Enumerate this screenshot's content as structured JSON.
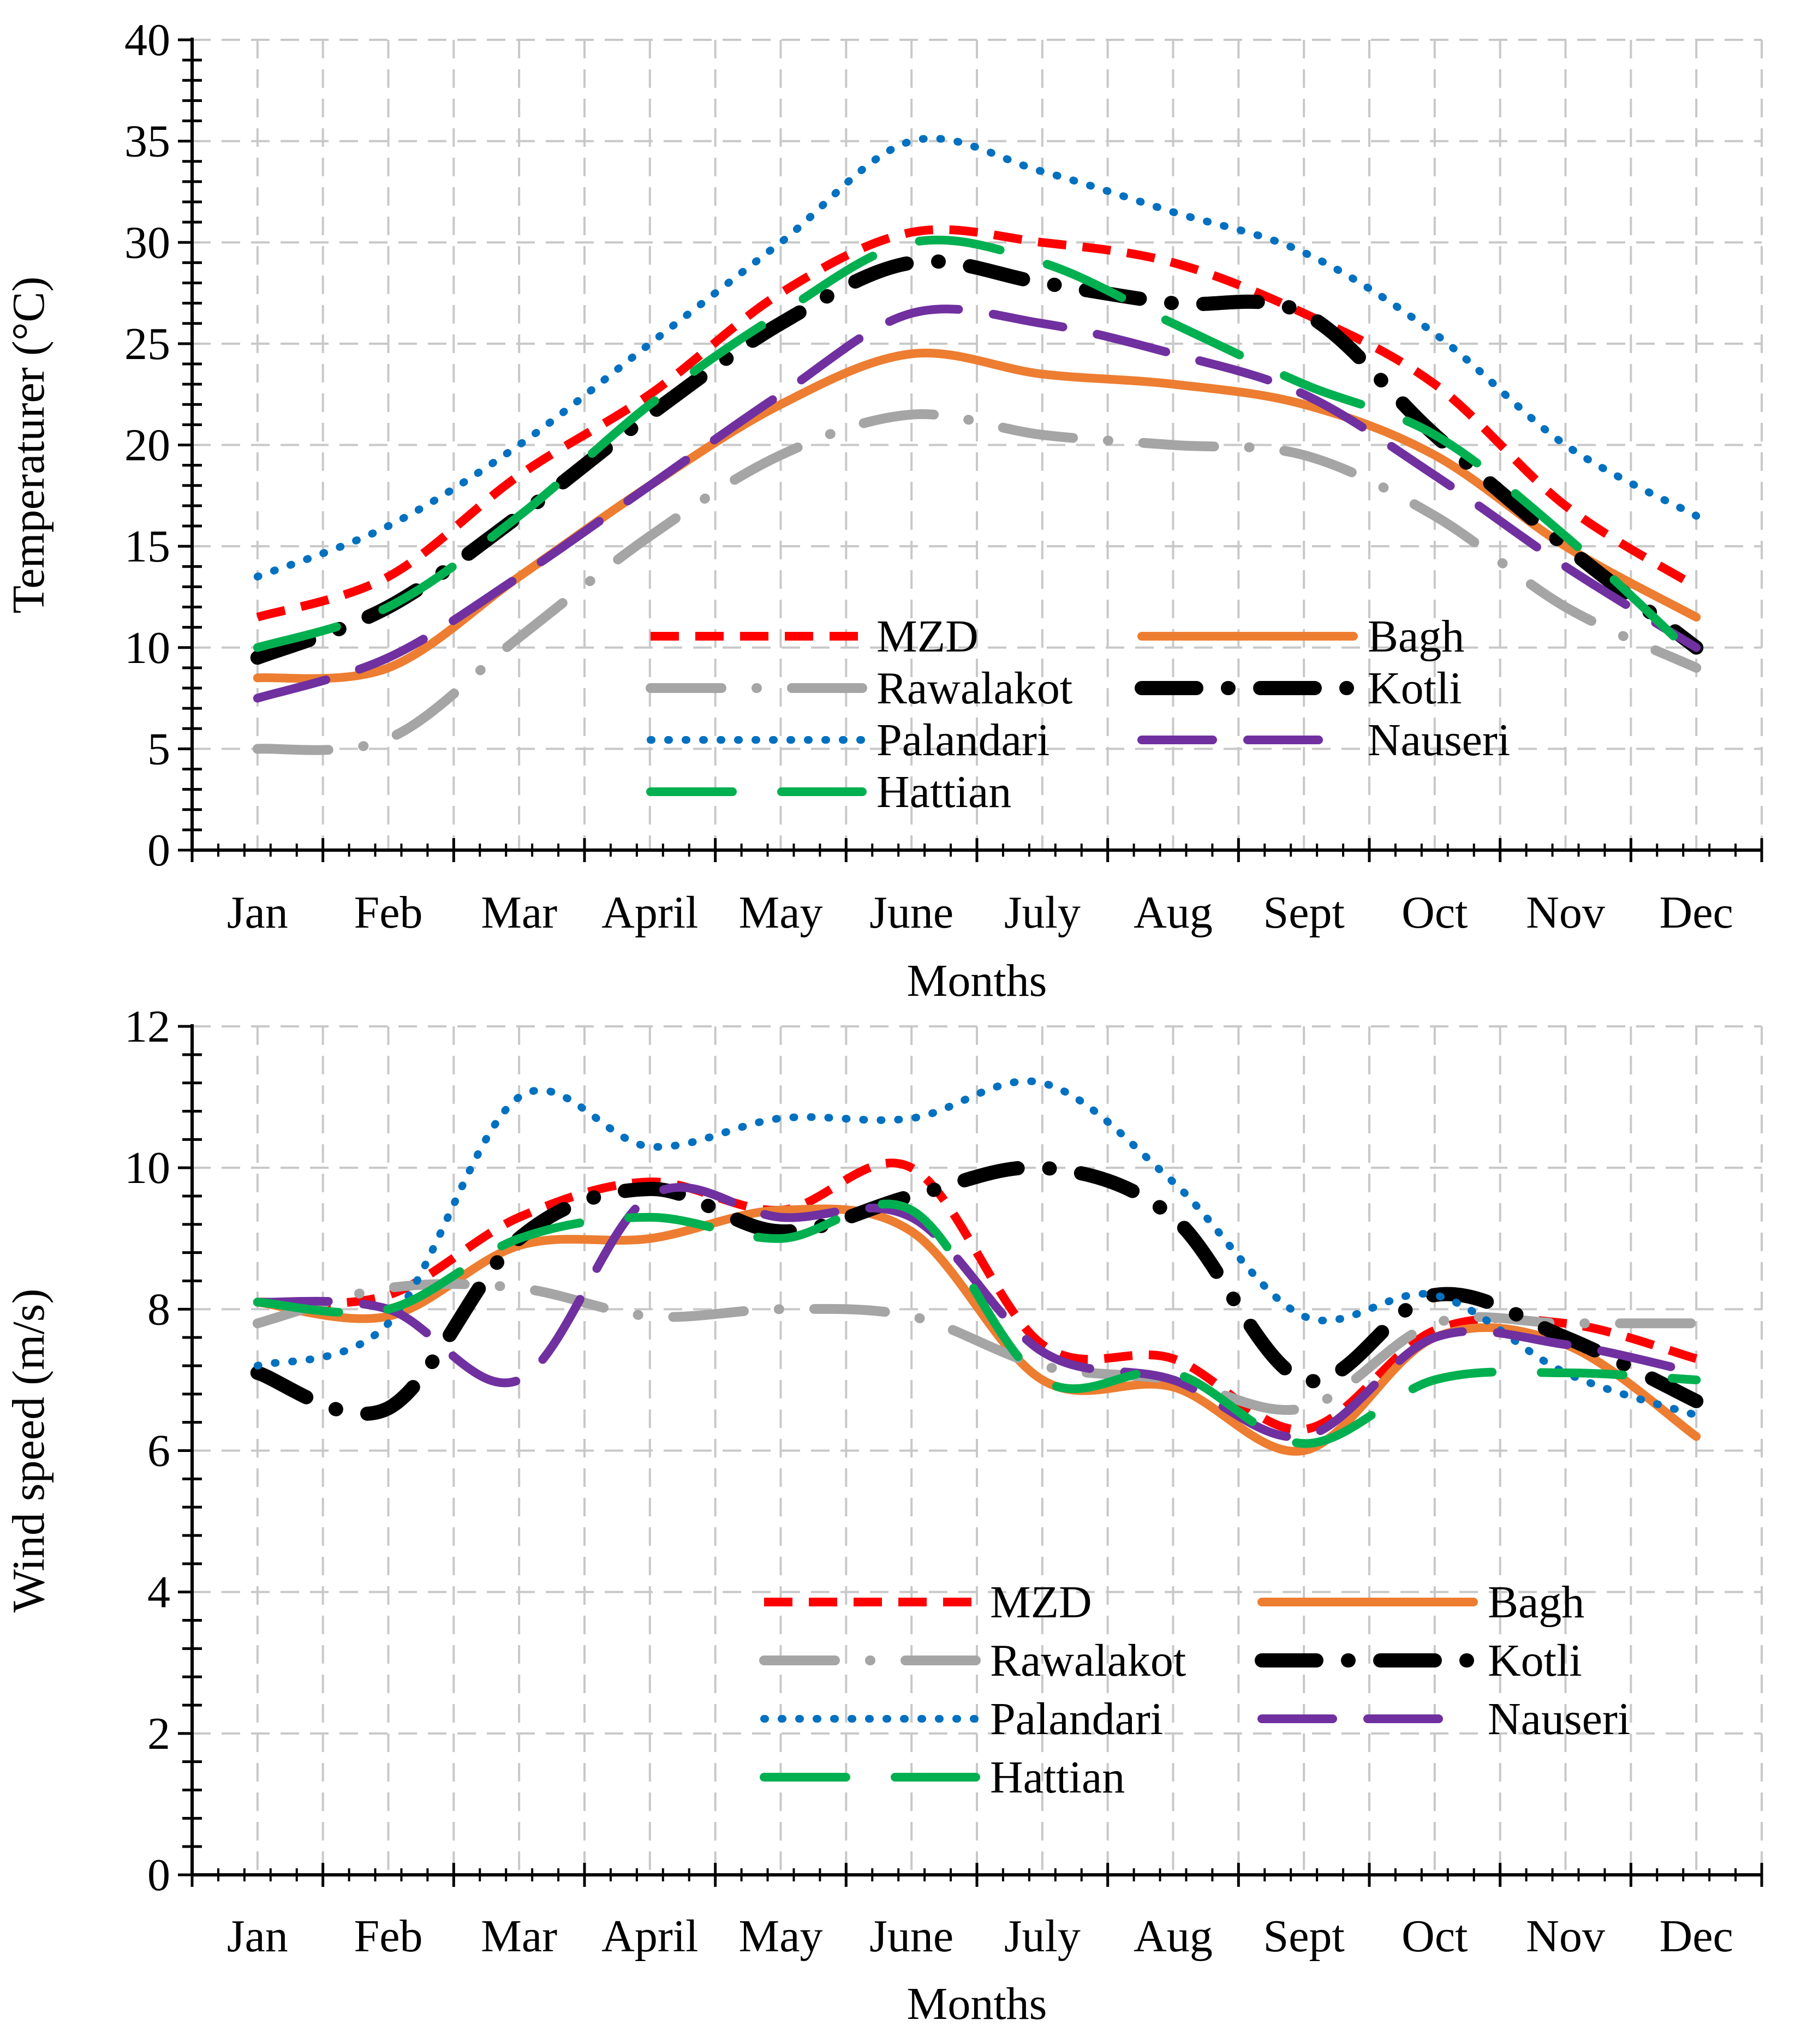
{
  "chart_data": [
    {
      "type": "line",
      "title": "",
      "xlabel": "Months",
      "ylabel": "Temperaturer (°C)",
      "categories": [
        "Jan",
        "Feb",
        "Mar",
        "April",
        "May",
        "June",
        "July",
        "Aug",
        "Sept",
        "Oct",
        "Nov",
        "Dec"
      ],
      "ylim": [
        0,
        40
      ],
      "ytick_step": 5,
      "ytick_labels": [
        "0",
        "5",
        "10",
        "15",
        "20",
        "25",
        "30",
        "35",
        "40"
      ],
      "grid": true,
      "legend_position": "lower-center",
      "series": [
        {
          "name": "MZD",
          "color": "#ff0000",
          "style": "dash",
          "values": [
            11.5,
            13.5,
            18.5,
            22.5,
            27.5,
            30.5,
            30.0,
            29.0,
            26.5,
            23.0,
            17.0,
            13.0
          ]
        },
        {
          "name": "Bagh",
          "color": "#ed7d31",
          "style": "solid",
          "values": [
            8.5,
            9.0,
            13.5,
            18.0,
            22.0,
            24.5,
            23.5,
            23.0,
            22.0,
            19.5,
            15.0,
            11.5
          ]
        },
        {
          "name": "Rawalakot",
          "color": "#a5a5a5",
          "style": "dashdot-long",
          "values": [
            5.0,
            5.5,
            10.5,
            15.5,
            19.5,
            21.5,
            20.5,
            20.0,
            19.5,
            16.5,
            12.0,
            9.0
          ]
        },
        {
          "name": "Kotli",
          "color": "#000000",
          "style": "dashdot",
          "values": [
            9.5,
            12.0,
            16.5,
            21.5,
            26.0,
            29.0,
            28.0,
            27.0,
            26.5,
            20.5,
            15.0,
            10.0
          ]
        },
        {
          "name": "Palandari",
          "color": "#0070c0",
          "style": "dot",
          "values": [
            13.5,
            16.0,
            20.0,
            25.0,
            30.0,
            35.0,
            33.5,
            31.5,
            29.5,
            25.5,
            20.0,
            16.5
          ]
        },
        {
          "name": "Nauseri",
          "color": "#7030a0",
          "style": "longdash",
          "values": [
            7.5,
            9.5,
            13.5,
            18.0,
            22.5,
            26.5,
            26.0,
            24.5,
            22.5,
            18.5,
            14.0,
            10.0
          ]
        },
        {
          "name": "Hattian",
          "color": "#00b050",
          "style": "longdash-wide",
          "values": [
            10.0,
            12.0,
            16.5,
            22.0,
            26.5,
            30.0,
            29.0,
            26.0,
            23.0,
            20.5,
            15.5,
            9.5
          ]
        }
      ]
    },
    {
      "type": "line",
      "title": "",
      "xlabel": "Months",
      "ylabel": "Wind speed (m/s)",
      "categories": [
        "Jan",
        "Feb",
        "Mar",
        "April",
        "May",
        "June",
        "July",
        "Aug",
        "Sept",
        "Oct",
        "Nov",
        "Dec"
      ],
      "ylim": [
        0,
        12
      ],
      "ytick_step": 2,
      "ytick_labels": [
        "0",
        "2",
        "4",
        "6",
        "8",
        "10",
        "12"
      ],
      "grid": true,
      "legend_position": "lower-center",
      "series": [
        {
          "name": "MZD",
          "color": "#ff0000",
          "style": "dash",
          "values": [
            8.1,
            8.2,
            9.3,
            9.8,
            9.4,
            10.0,
            7.5,
            7.3,
            6.3,
            7.7,
            7.8,
            7.3
          ]
        },
        {
          "name": "Bagh",
          "color": "#ed7d31",
          "style": "solid",
          "values": [
            8.1,
            7.9,
            8.9,
            9.0,
            9.4,
            9.1,
            7.0,
            6.9,
            6.0,
            7.6,
            7.5,
            6.2
          ]
        },
        {
          "name": "Rawalakot",
          "color": "#a5a5a5",
          "style": "dashdot-long",
          "values": [
            7.8,
            8.3,
            8.3,
            7.9,
            8.0,
            7.9,
            7.2,
            7.0,
            6.6,
            7.8,
            7.8,
            7.8
          ]
        },
        {
          "name": "Kotli",
          "color": "#000000",
          "style": "dashdot",
          "values": [
            7.1,
            6.6,
            9.0,
            9.7,
            9.1,
            9.6,
            10.0,
            9.3,
            7.0,
            8.2,
            7.6,
            6.7
          ]
        },
        {
          "name": "Palandari",
          "color": "#0070c0",
          "style": "dot",
          "values": [
            7.2,
            7.8,
            11.0,
            10.3,
            10.7,
            10.7,
            11.2,
            9.8,
            7.9,
            8.2,
            7.1,
            6.5
          ]
        },
        {
          "name": "Nauseri",
          "color": "#7030a0",
          "style": "longdash",
          "values": [
            8.1,
            8.0,
            7.0,
            9.6,
            9.3,
            9.3,
            7.4,
            7.0,
            6.2,
            7.6,
            7.5,
            7.1
          ]
        },
        {
          "name": "Hattian",
          "color": "#00b050",
          "style": "longdash-wide",
          "values": [
            8.1,
            8.0,
            9.0,
            9.3,
            9.0,
            9.4,
            7.0,
            7.1,
            6.1,
            7.0,
            7.1,
            7.0
          ]
        }
      ]
    }
  ]
}
